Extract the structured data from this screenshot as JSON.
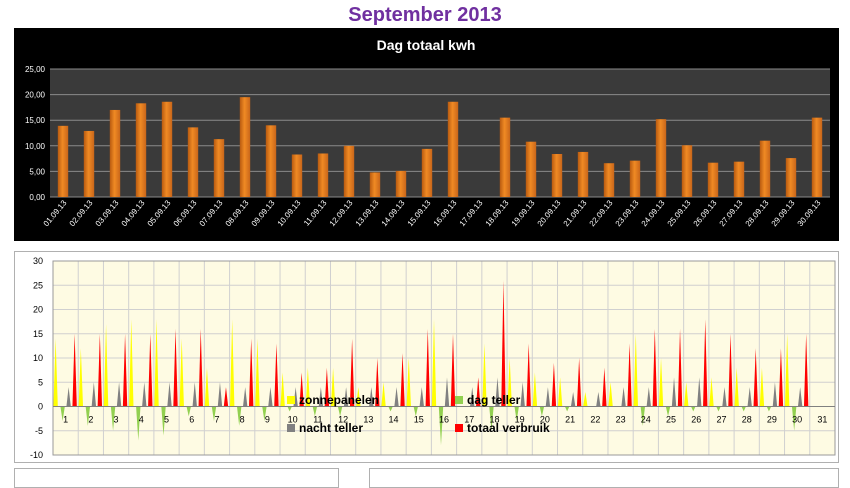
{
  "page": {
    "title": "September 2013"
  },
  "chart_data": [
    {
      "type": "bar",
      "title": "Dag totaal kwh",
      "categories": [
        "01.09.13",
        "02.09.13",
        "03.09.13",
        "04.09.13",
        "05.09.13",
        "06.09.13",
        "07.09.13",
        "08.09.13",
        "09.09.13",
        "10.09.13",
        "11.09.13",
        "12.09.13",
        "13.09.13",
        "14.09.13",
        "15.09.13",
        "16.09.13",
        "17.09.13",
        "18.09.13",
        "19.09.13",
        "20.09.13",
        "21.09.13",
        "22.09.13",
        "23.09.13",
        "24.09.13",
        "25.09.13",
        "26.09.13",
        "27.09.13",
        "28.09.13",
        "29.09.13",
        "30.09.13"
      ],
      "values": [
        13.9,
        12.9,
        17.0,
        18.3,
        18.6,
        13.6,
        11.3,
        19.5,
        14.0,
        8.3,
        8.5,
        10.0,
        4.8,
        5.1,
        9.4,
        18.6,
        null,
        15.5,
        10.8,
        8.4,
        8.8,
        6.6,
        7.1,
        15.2,
        10.1,
        6.7,
        6.9,
        11.0,
        7.6,
        15.5
      ],
      "yticks": [
        "0,00",
        "5,00",
        "10,00",
        "15,00",
        "20,00",
        "25,00"
      ],
      "ylim": [
        0,
        25
      ],
      "grid": true,
      "colors": {
        "bar": "#f08a24",
        "plot_bg": "#3a3a3a",
        "panel_bg": "#000000",
        "text": "#ffffff"
      }
    },
    {
      "type": "area",
      "categories": [
        "1",
        "2",
        "3",
        "4",
        "5",
        "6",
        "7",
        "8",
        "9",
        "10",
        "11",
        "12",
        "13",
        "14",
        "15",
        "16",
        "17",
        "18",
        "19",
        "20",
        "21",
        "22",
        "23",
        "24",
        "25",
        "26",
        "27",
        "28",
        "29",
        "30",
        "31"
      ],
      "yticks": [
        "-10",
        "-5",
        "0",
        "5",
        "10",
        "15",
        "20",
        "25",
        "30"
      ],
      "ylim": [
        -10,
        30
      ],
      "grid": true,
      "legend_position": "bottom-inside",
      "series": [
        {
          "name": "zonnepanelen",
          "color": "#ffff00",
          "values": [
            14,
            12,
            17,
            18,
            18,
            14,
            8,
            18,
            14,
            7,
            8,
            8,
            4,
            5,
            10,
            18,
            0,
            13,
            10,
            7,
            6,
            3,
            5,
            15,
            10,
            5,
            6,
            8,
            8,
            15,
            0
          ]
        },
        {
          "name": "dag teller",
          "color": "#92d050",
          "values": [
            -3,
            -4,
            -5,
            -7,
            -6,
            -2,
            -3,
            -4,
            -3,
            -1,
            -2,
            -2,
            0,
            -1,
            -2,
            -8,
            0,
            -5,
            -3,
            -2,
            -1,
            0,
            0,
            -4,
            -2,
            -1,
            -1,
            -1,
            -1,
            -5,
            0
          ]
        },
        {
          "name": "nacht teller",
          "color": "#808080",
          "values": [
            4,
            5,
            5,
            5,
            5,
            5,
            5,
            4,
            4,
            4,
            4,
            4,
            4,
            4,
            4,
            6,
            4,
            6,
            5,
            4,
            3,
            3,
            4,
            4,
            6,
            6,
            4,
            4,
            5,
            4,
            0
          ]
        },
        {
          "name": "totaal verbruik",
          "color": "#ff0000",
          "values": [
            15,
            15,
            15,
            15,
            16,
            16,
            4,
            14,
            13,
            7,
            8,
            14,
            10,
            11,
            16,
            15,
            6,
            26,
            13,
            9,
            10,
            8,
            13,
            16,
            16,
            18,
            15,
            12,
            12,
            15,
            0
          ]
        }
      ],
      "colors": {
        "plot_bg": "#fefbe3",
        "grid": "#d0d0d0"
      }
    }
  ]
}
